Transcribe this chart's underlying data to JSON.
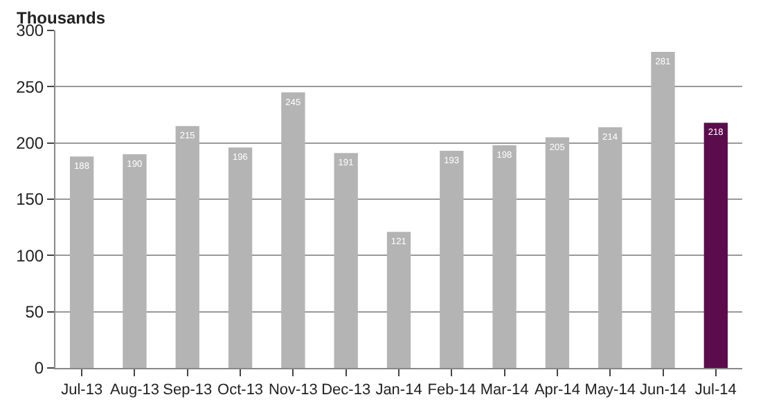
{
  "chart_data": {
    "type": "bar",
    "ylabel": "Thousands",
    "categories": [
      "Jul-13",
      "Aug-13",
      "Sep-13",
      "Oct-13",
      "Nov-13",
      "Dec-13",
      "Jan-14",
      "Feb-14",
      "Mar-14",
      "Apr-14",
      "May-14",
      "Jun-14",
      "Jul-14"
    ],
    "values": [
      188,
      190,
      215,
      196,
      245,
      191,
      121,
      193,
      198,
      205,
      214,
      281,
      218
    ],
    "colors": [
      "#b4b4b4",
      "#b4b4b4",
      "#b4b4b4",
      "#b4b4b4",
      "#b4b4b4",
      "#b4b4b4",
      "#b4b4b4",
      "#b4b4b4",
      "#b4b4b4",
      "#b4b4b4",
      "#b4b4b4",
      "#b4b4b4",
      "#5a0c4c"
    ],
    "ylim": [
      0,
      300
    ],
    "yticks": [
      0,
      50,
      100,
      150,
      200,
      250,
      300
    ],
    "grid": "y",
    "data_labels": true
  }
}
